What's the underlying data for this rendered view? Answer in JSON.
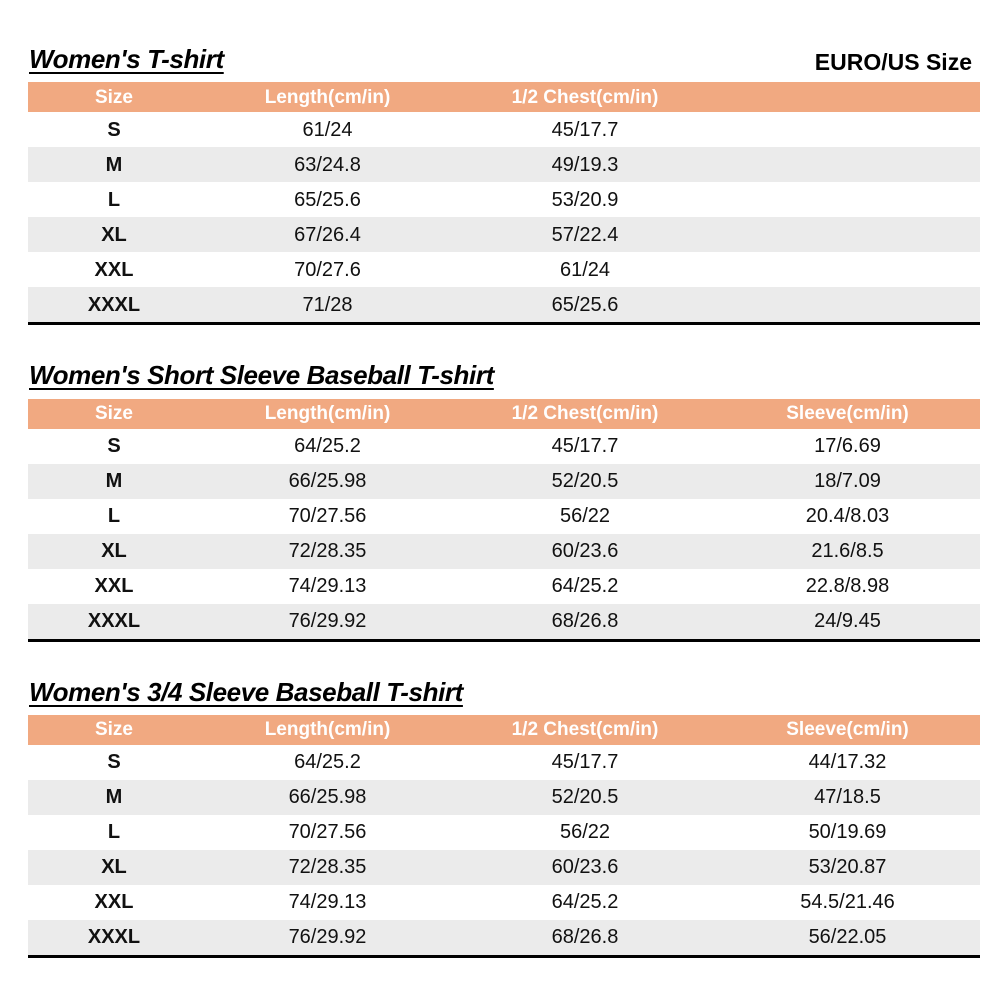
{
  "corner_label": "EURO/US Size",
  "colors": {
    "header_bg": "#F1A981",
    "alt_row_bg": "#EBEBEB",
    "header_text": "#FFFFFF",
    "body_text": "#111111",
    "table_bottom_border": "#000000"
  },
  "tables": [
    {
      "title": "Women's T-shirt",
      "headers": [
        "Size",
        "Length(cm/in)",
        "1/2 Chest(cm/in)",
        ""
      ],
      "rows": [
        [
          "S",
          "61/24",
          "45/17.7",
          ""
        ],
        [
          "M",
          "63/24.8",
          "49/19.3",
          ""
        ],
        [
          "L",
          "65/25.6",
          "53/20.9",
          ""
        ],
        [
          "XL",
          "67/26.4",
          "57/22.4",
          ""
        ],
        [
          "XXL",
          "70/27.6",
          "61/24",
          ""
        ],
        [
          "XXXL",
          "71/28",
          "65/25.6",
          ""
        ]
      ]
    },
    {
      "title": "Women's Short Sleeve Baseball T-shirt",
      "headers": [
        "Size",
        "Length(cm/in)",
        "1/2 Chest(cm/in)",
        "Sleeve(cm/in)"
      ],
      "rows": [
        [
          "S",
          "64/25.2",
          "45/17.7",
          "17/6.69"
        ],
        [
          "M",
          "66/25.98",
          "52/20.5",
          "18/7.09"
        ],
        [
          "L",
          "70/27.56",
          "56/22",
          "20.4/8.03"
        ],
        [
          "XL",
          "72/28.35",
          "60/23.6",
          "21.6/8.5"
        ],
        [
          "XXL",
          "74/29.13",
          "64/25.2",
          "22.8/8.98"
        ],
        [
          "XXXL",
          "76/29.92",
          "68/26.8",
          "24/9.45"
        ]
      ]
    },
    {
      "title": "Women's 3/4 Sleeve Baseball T-shirt",
      "headers": [
        "Size",
        "Length(cm/in)",
        "1/2 Chest(cm/in)",
        "Sleeve(cm/in)"
      ],
      "rows": [
        [
          "S",
          "64/25.2",
          "45/17.7",
          "44/17.32"
        ],
        [
          "M",
          "66/25.98",
          "52/20.5",
          "47/18.5"
        ],
        [
          "L",
          "70/27.56",
          "56/22",
          "50/19.69"
        ],
        [
          "XL",
          "72/28.35",
          "60/23.6",
          "53/20.87"
        ],
        [
          "XXL",
          "74/29.13",
          "64/25.2",
          "54.5/21.46"
        ],
        [
          "XXXL",
          "76/29.92",
          "68/26.8",
          "56/22.05"
        ]
      ]
    }
  ]
}
